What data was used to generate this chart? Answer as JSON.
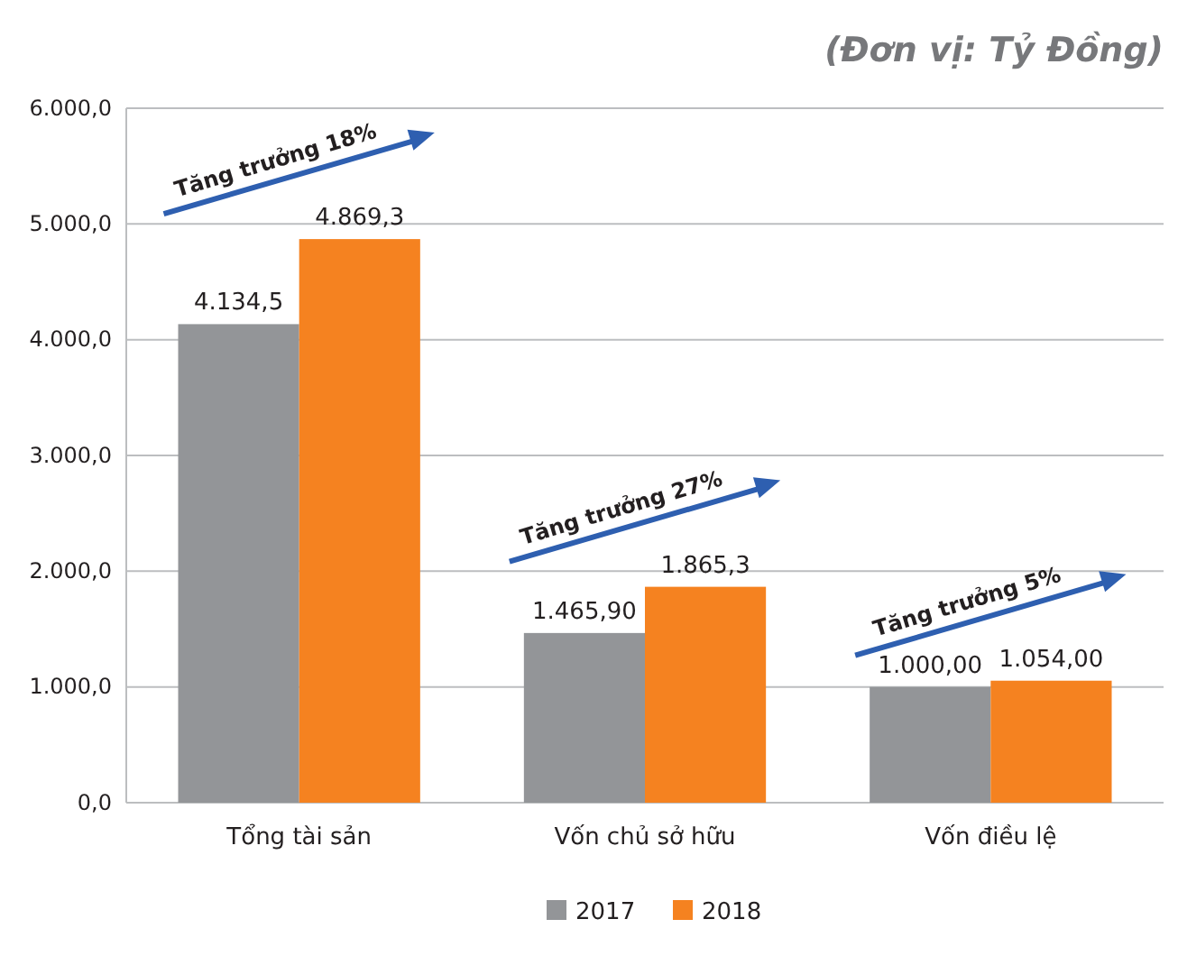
{
  "chart_data": {
    "type": "bar",
    "title": "(Đơn vị: Tỷ Đồng)",
    "categories": [
      "Tổng tài sản",
      "Vốn chủ sở hữu",
      "Vốn điều lệ"
    ],
    "series": [
      {
        "name": "2017",
        "color": "#939598",
        "values": [
          4134.5,
          1465.9,
          1000
        ],
        "value_labels": [
          "4.134,5",
          "1.465,90",
          "1.000,00"
        ]
      },
      {
        "name": "2018",
        "color": "#f58220",
        "values": [
          4869.3,
          1865.3,
          1054
        ],
        "value_labels": [
          "4.869,3",
          "1.865,3",
          "1.054,00"
        ]
      }
    ],
    "ylim": [
      0,
      6000
    ],
    "yticks": [
      {
        "value": 0,
        "label": "0,0"
      },
      {
        "value": 1000,
        "label": "1.000,0"
      },
      {
        "value": 2000,
        "label": "2.000,0"
      },
      {
        "value": 3000,
        "label": "3.000,0"
      },
      {
        "value": 4000,
        "label": "4.000,0"
      },
      {
        "value": 5000,
        "label": "5.000,0"
      },
      {
        "value": 6000,
        "label": "6.000,0"
      }
    ],
    "grid": "y",
    "legend": "bottom",
    "annotations": [
      "Tăng trưởng 18%",
      "Tăng trưởng 27%",
      "Tăng trưởng 5%"
    ]
  }
}
